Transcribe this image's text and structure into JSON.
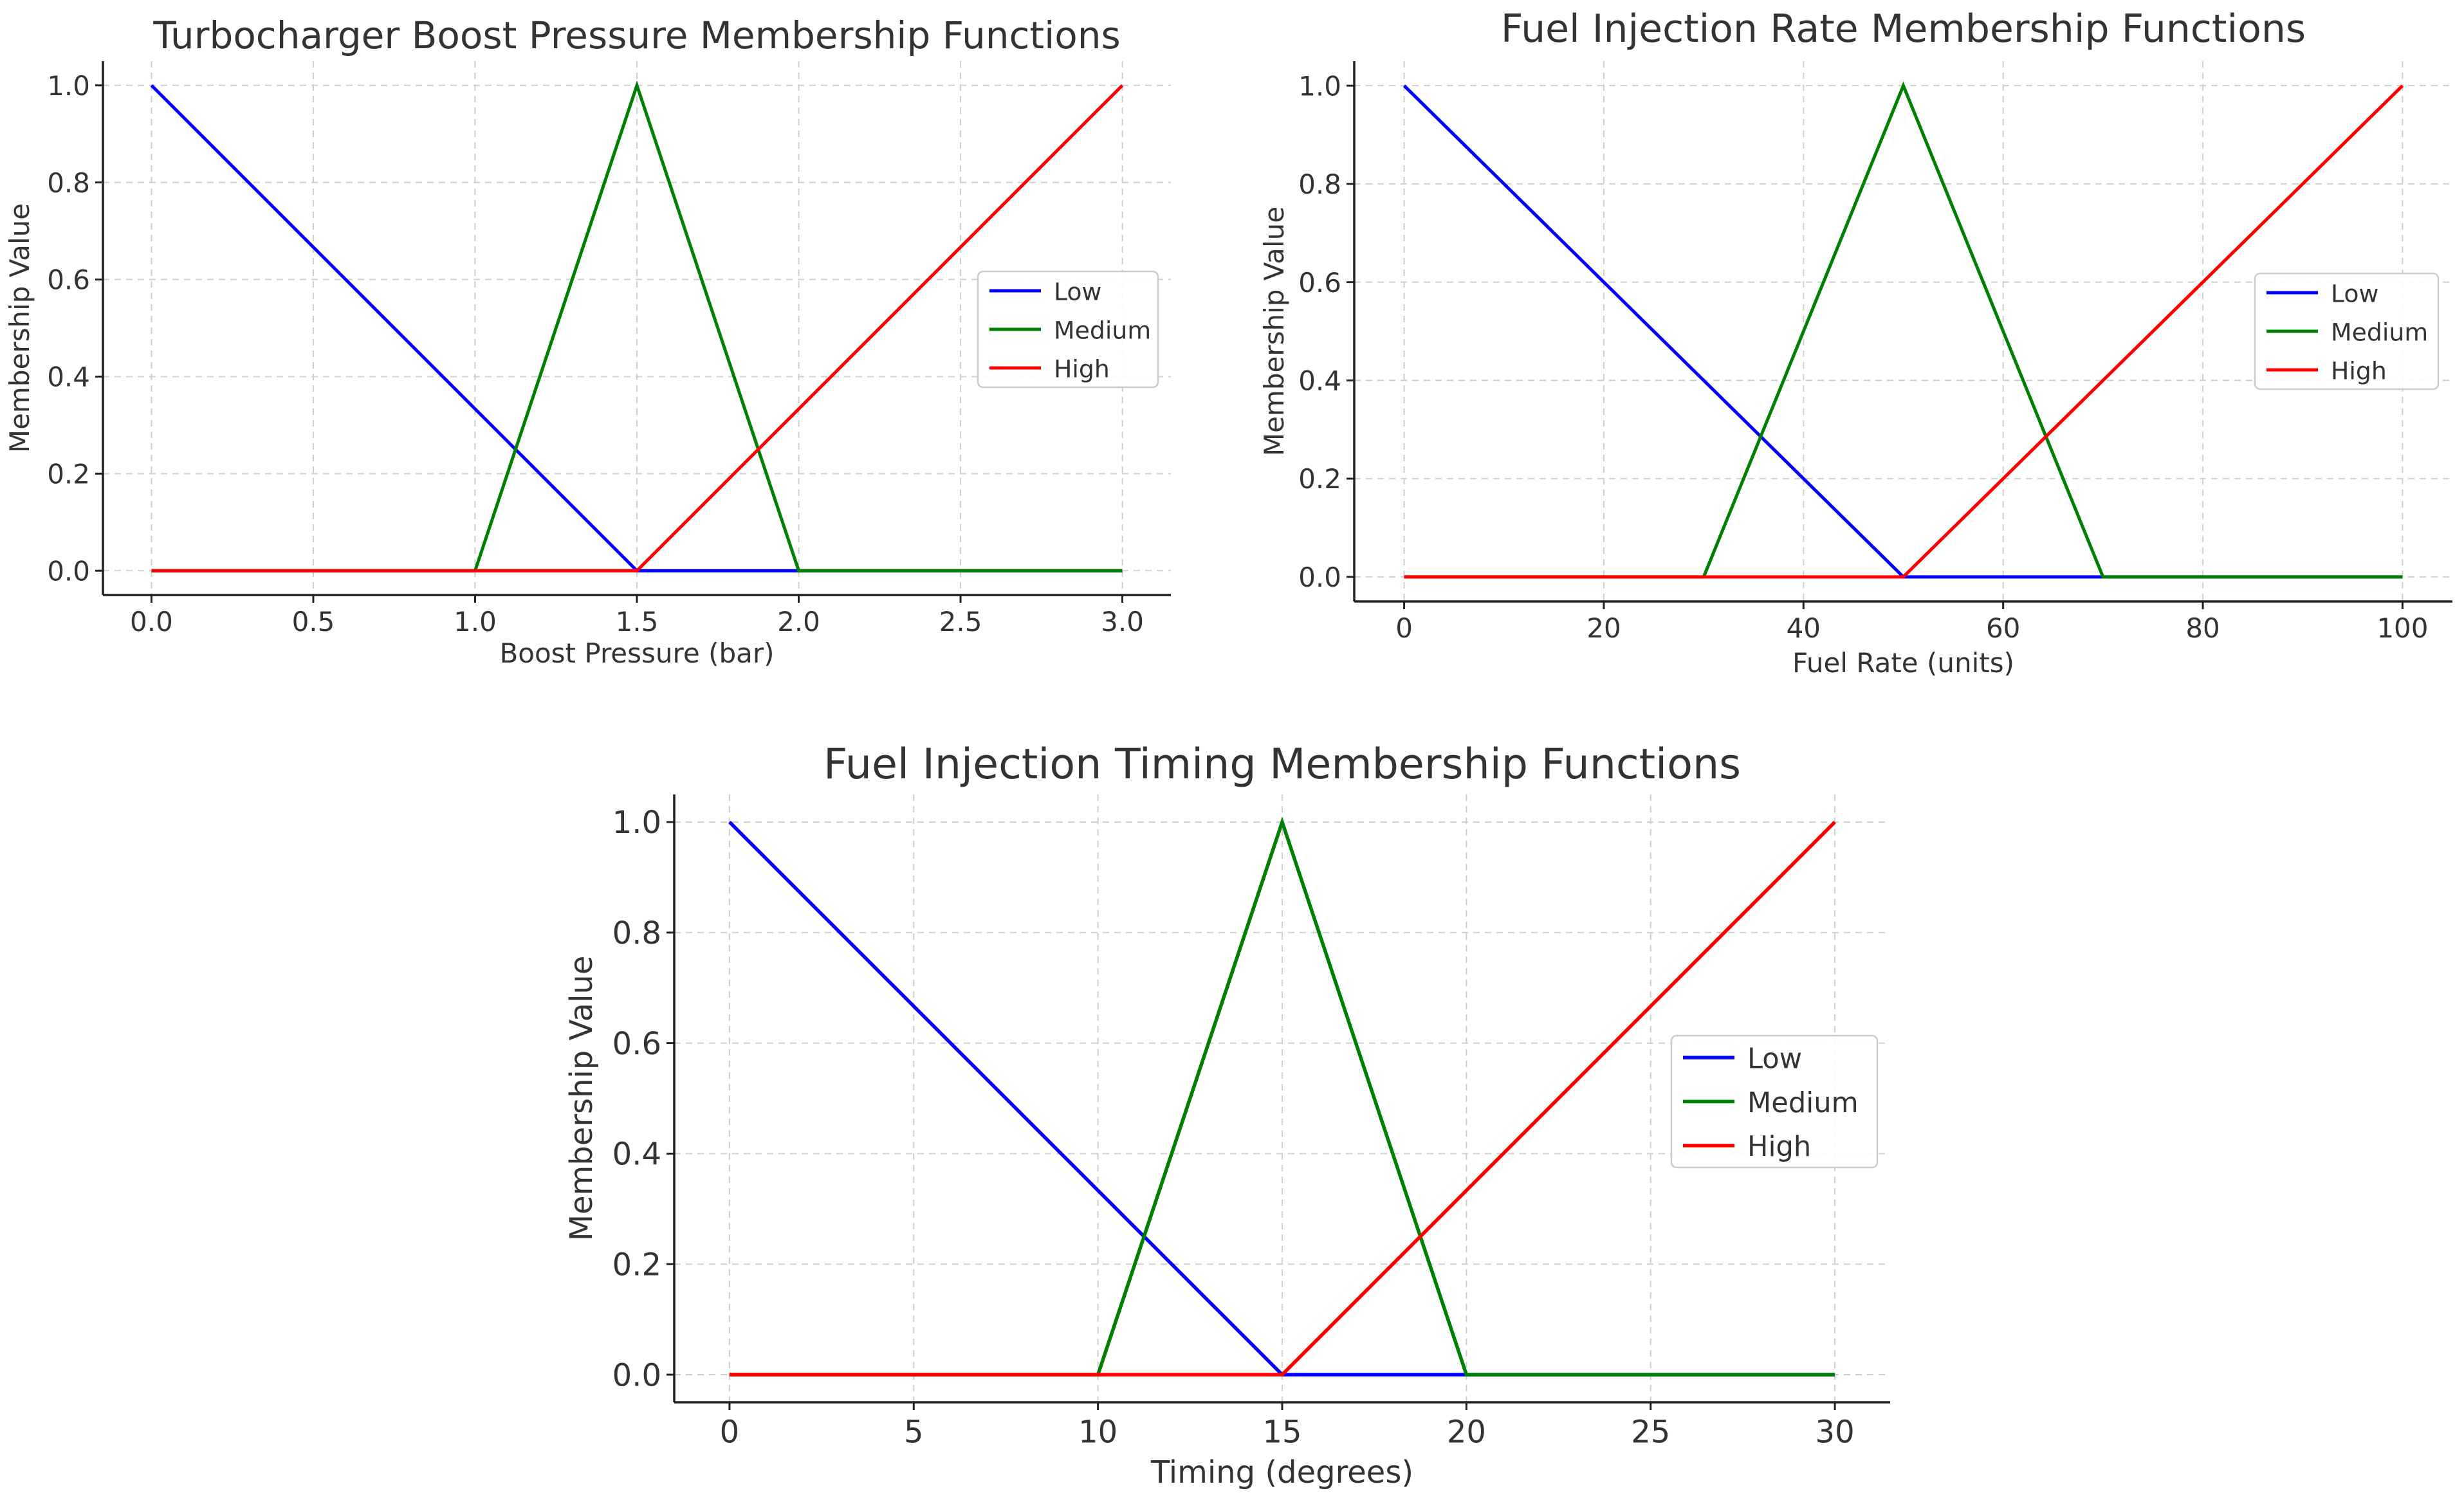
{
  "chart_data": [
    {
      "type": "line",
      "title": "Turbocharger Boost Pressure Membership Functions",
      "xlabel": "Boost Pressure (bar)",
      "ylabel": "Membership Value",
      "xlim": [
        -0.15,
        3.15
      ],
      "ylim": [
        -0.05,
        1.05
      ],
      "xticks": [
        0.0,
        0.5,
        1.0,
        1.5,
        2.0,
        2.5,
        3.0
      ],
      "xtick_labels": [
        "0.0",
        "0.5",
        "1.0",
        "1.5",
        "2.0",
        "2.5",
        "3.0"
      ],
      "yticks": [
        0.0,
        0.2,
        0.4,
        0.6,
        0.8,
        1.0
      ],
      "ytick_labels": [
        "0.0",
        "0.2",
        "0.4",
        "0.6",
        "0.8",
        "1.0"
      ],
      "grid": true,
      "legend_position": "center-right",
      "series": [
        {
          "name": "Low",
          "color": "#0000ff",
          "x": [
            0,
            1.5,
            3.0
          ],
          "y": [
            1,
            0,
            0
          ]
        },
        {
          "name": "Medium",
          "color": "#008000",
          "x": [
            0,
            1.0,
            1.5,
            2.0,
            3.0
          ],
          "y": [
            0,
            0,
            1,
            0,
            0
          ]
        },
        {
          "name": "High",
          "color": "#ff0000",
          "x": [
            0,
            1.5,
            3.0
          ],
          "y": [
            0,
            0,
            1
          ]
        }
      ]
    },
    {
      "type": "line",
      "title": "Fuel Injection Rate Membership Functions",
      "xlabel": "Fuel Rate (units)",
      "ylabel": "Membership Value",
      "xlim": [
        -5,
        105
      ],
      "ylim": [
        -0.05,
        1.05
      ],
      "xticks": [
        0,
        20,
        40,
        60,
        80,
        100
      ],
      "xtick_labels": [
        "0",
        "20",
        "40",
        "60",
        "80",
        "100"
      ],
      "yticks": [
        0.0,
        0.2,
        0.4,
        0.6,
        0.8,
        1.0
      ],
      "ytick_labels": [
        "0.0",
        "0.2",
        "0.4",
        "0.6",
        "0.8",
        "1.0"
      ],
      "grid": true,
      "legend_position": "center-right",
      "series": [
        {
          "name": "Low",
          "color": "#0000ff",
          "x": [
            0,
            50,
            100
          ],
          "y": [
            1,
            0,
            0
          ]
        },
        {
          "name": "Medium",
          "color": "#008000",
          "x": [
            0,
            30,
            50,
            70,
            100
          ],
          "y": [
            0,
            0,
            1,
            0,
            0
          ]
        },
        {
          "name": "High",
          "color": "#ff0000",
          "x": [
            0,
            50,
            100
          ],
          "y": [
            0,
            0,
            1
          ]
        }
      ]
    },
    {
      "type": "line",
      "title": "Fuel Injection Timing Membership Functions",
      "xlabel": "Timing (degrees)",
      "ylabel": "Membership Value",
      "xlim": [
        -1.5,
        31.5
      ],
      "ylim": [
        -0.05,
        1.05
      ],
      "xticks": [
        0,
        5,
        10,
        15,
        20,
        25,
        30
      ],
      "xtick_labels": [
        "0",
        "5",
        "10",
        "15",
        "20",
        "25",
        "30"
      ],
      "yticks": [
        0.0,
        0.2,
        0.4,
        0.6,
        0.8,
        1.0
      ],
      "ytick_labels": [
        "0.0",
        "0.2",
        "0.4",
        "0.6",
        "0.8",
        "1.0"
      ],
      "grid": true,
      "legend_position": "center-right",
      "series": [
        {
          "name": "Low",
          "color": "#0000ff",
          "x": [
            0,
            15,
            30
          ],
          "y": [
            1,
            0,
            0
          ]
        },
        {
          "name": "Medium",
          "color": "#008000",
          "x": [
            0,
            10,
            15,
            20,
            30
          ],
          "y": [
            0,
            0,
            1,
            0,
            0
          ]
        },
        {
          "name": "High",
          "color": "#ff0000",
          "x": [
            0,
            15,
            30
          ],
          "y": [
            0,
            0,
            1
          ]
        }
      ]
    }
  ]
}
